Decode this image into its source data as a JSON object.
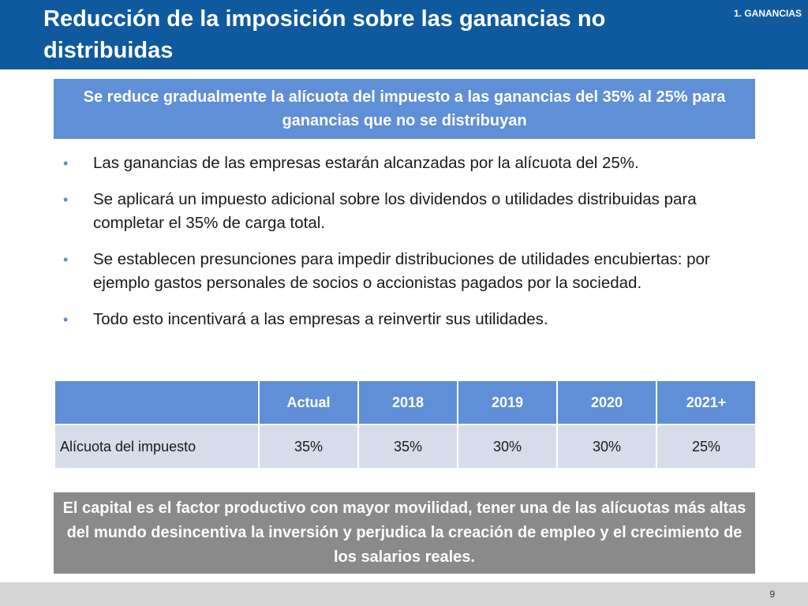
{
  "header": {
    "title": "Reducción de la imposición sobre las ganancias no distribuidas",
    "section": "1. GANANCIAS"
  },
  "banner": {
    "text": "Se reduce gradualmente la alícuota del impuesto a las ganancias del 35% al 25% para ganancias que no se distribuyan"
  },
  "bullets": [
    "Las ganancias de las empresas estarán alcanzadas por la alícuota del 25%.",
    "Se aplicará un impuesto adicional sobre los dividendos o utilidades distribuidas para completar el 35% de carga total.",
    "Se establecen presunciones para impedir distribuciones de utilidades encubiertas: por ejemplo gastos personales de socios o accionistas pagados por la sociedad.",
    "Todo esto incentivará a las empresas a reinvertir sus utilidades."
  ],
  "bullet_symbol": "•",
  "table": {
    "headers": [
      "",
      "Actual",
      "2018",
      "2019",
      "2020",
      "2021+"
    ],
    "row_label": "Alícuota del impuesto",
    "values": [
      "35%",
      "35%",
      "30%",
      "30%",
      "25%"
    ]
  },
  "conclusion": {
    "text": "El capital es el factor productivo con mayor movilidad, tener una de las alícuotas más altas del mundo desincentiva la inversión y perjudica la creación de empleo y el crecimiento de los salarios reales."
  },
  "footer": {
    "page_number": "9"
  },
  "colors": {
    "header_bg": "#0f5a9e",
    "accent_blue": "#5f8fd6",
    "table_cell": "#d6dcea",
    "conclusion_bg": "#8a8a8a",
    "footer_bg": "#d4d4d4"
  }
}
